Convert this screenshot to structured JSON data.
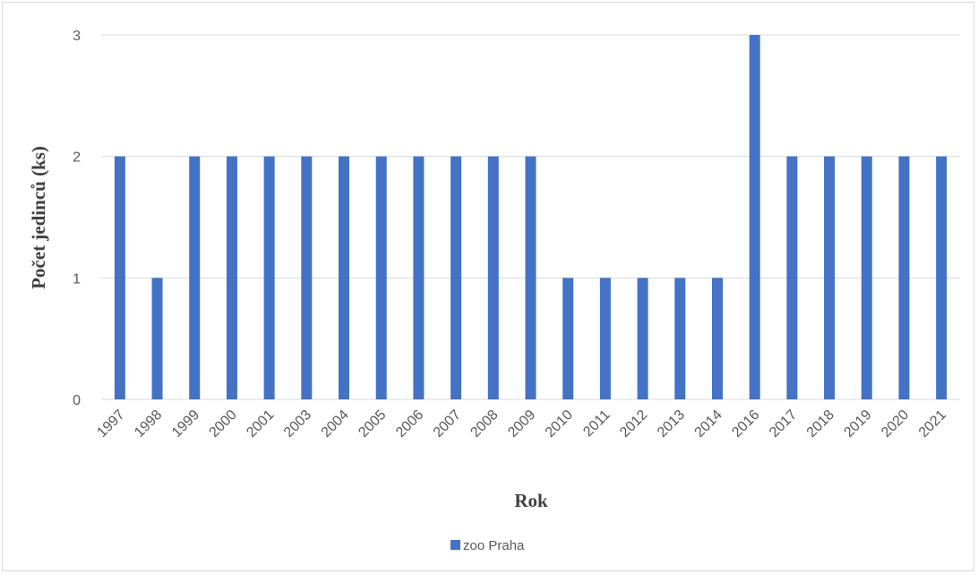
{
  "chart_data": {
    "type": "bar",
    "categories": [
      "1997",
      "1998",
      "1999",
      "2000",
      "2001",
      "2003",
      "2004",
      "2005",
      "2006",
      "2007",
      "2008",
      "2009",
      "2010",
      "2011",
      "2012",
      "2013",
      "2014",
      "2016",
      "2017",
      "2018",
      "2019",
      "2020",
      "2021"
    ],
    "series": [
      {
        "name": "zoo Praha",
        "values": [
          2,
          1,
          2,
          2,
          2,
          2,
          2,
          2,
          2,
          2,
          2,
          2,
          1,
          1,
          1,
          1,
          1,
          3,
          2,
          2,
          2,
          2,
          2
        ]
      }
    ],
    "xlabel": "Rok",
    "ylabel": "Počet jedinců (ks)",
    "ylim": [
      0,
      3
    ],
    "yticks": [
      0,
      1,
      2,
      3
    ],
    "grid": true,
    "legend_position": "bottom",
    "colors": {
      "bar": "#4472c4",
      "grid": "#d9d9d9"
    }
  }
}
